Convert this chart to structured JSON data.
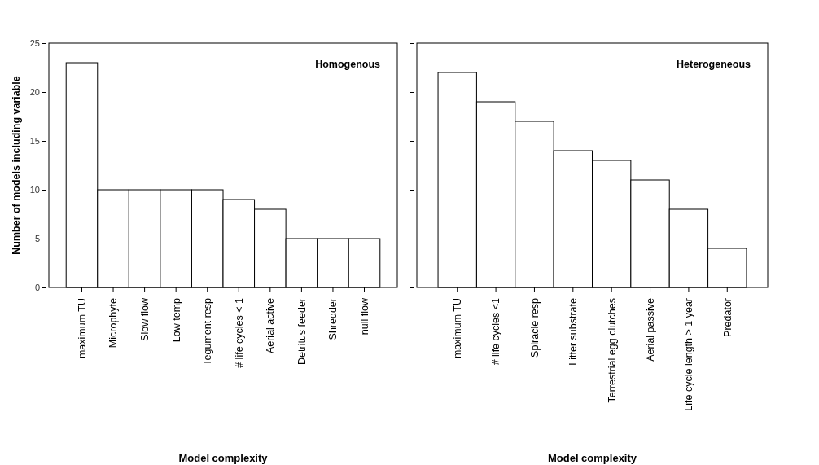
{
  "chart_data": [
    {
      "type": "bar",
      "title": "Homogenous",
      "xlabel": "Model complexity",
      "ylabel": "Number of models including variable",
      "categories": [
        "maximum TU",
        "Microphyte",
        "Slow flow",
        "Low temp",
        "Tegument resp",
        "# life cycles < 1",
        "Aerial active",
        "Detritus feeder",
        "Shredder",
        "null flow"
      ],
      "values": [
        23,
        10,
        10,
        10,
        10,
        9,
        8,
        5,
        5,
        5
      ],
      "color": "#ffffff",
      "ylim": [
        0,
        25
      ],
      "yticks": [
        0,
        5,
        10,
        15,
        20,
        25
      ]
    },
    {
      "type": "bar",
      "title": "Heterogeneous",
      "xlabel": "Model complexity",
      "categories": [
        "maximum TU",
        "# life cycles <1",
        "Spiracle resp",
        "Litter substrate",
        "Terrestrial egg clutches",
        "Aerial passive",
        "Life cycle length > 1 year",
        "Predator"
      ],
      "values": [
        22,
        19,
        17,
        14,
        13,
        11,
        8,
        4
      ],
      "color": "#ffffff",
      "ylim": [
        0,
        25
      ],
      "yticks": [
        0,
        5,
        10,
        15,
        20,
        25
      ],
      "tick_labels": "x"
    }
  ]
}
